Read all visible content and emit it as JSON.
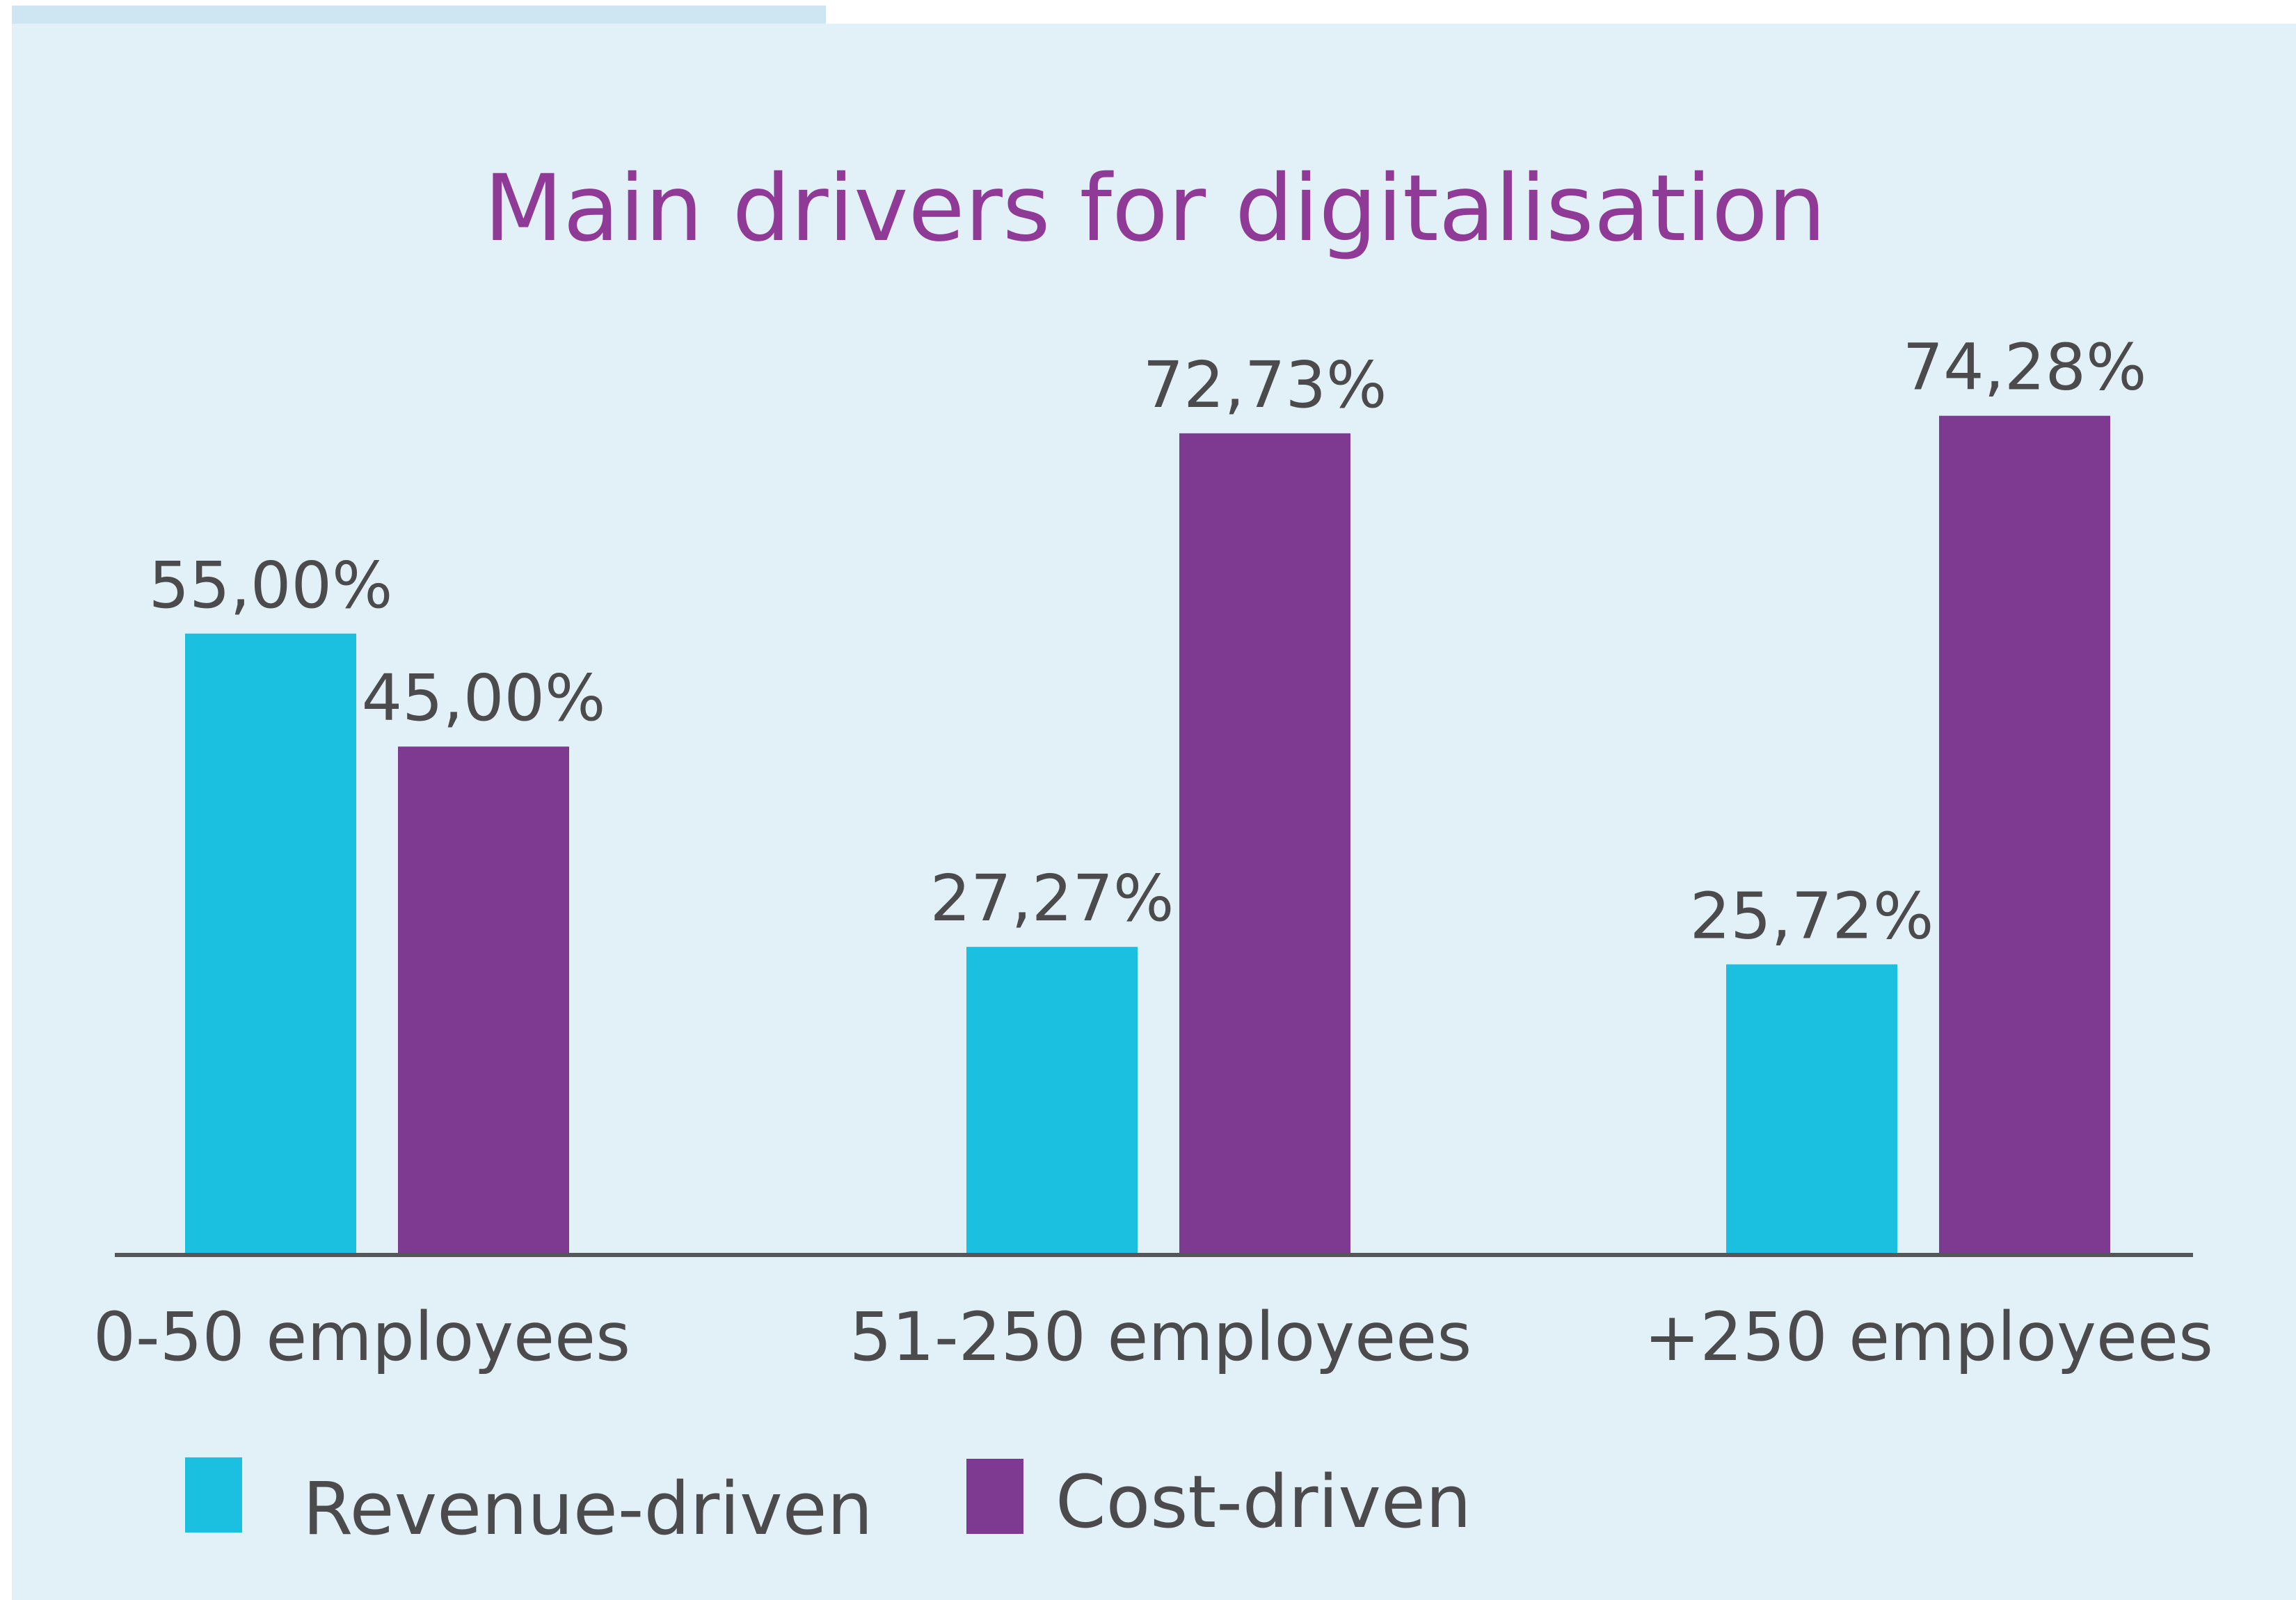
{
  "chart_data": {
    "type": "bar",
    "title": "Main drivers for digitalisation",
    "xlabel": "",
    "ylabel": "",
    "categories": [
      "0-50 employees",
      "51-250 employees",
      "+250 employees"
    ],
    "series": [
      {
        "name": "Revenue-driven",
        "color": "#1bbfdf",
        "values": [
          55.0,
          27.27,
          25.72
        ],
        "labels": [
          "55,00%",
          "27,27%",
          "25,72%"
        ]
      },
      {
        "name": "Cost-driven",
        "color": "#7e3a91",
        "values": [
          45.0,
          72.73,
          74.28
        ],
        "labels": [
          "45,00%",
          "72,73%",
          "74,28%"
        ]
      }
    ],
    "ylim": [
      0,
      100
    ],
    "grid": false,
    "legend_position": "bottom-left"
  }
}
